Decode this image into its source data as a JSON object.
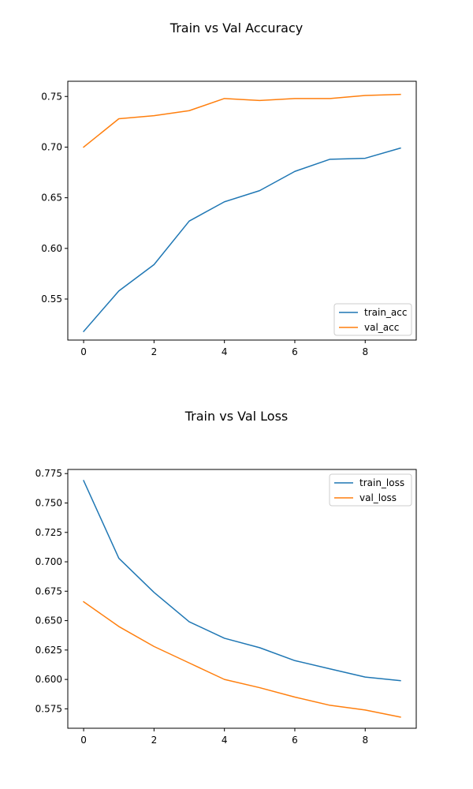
{
  "chart_data": [
    {
      "type": "line",
      "title": "Train vs Val Accuracy",
      "xlabel": "",
      "ylabel": "",
      "x": [
        0,
        1,
        2,
        3,
        4,
        5,
        6,
        7,
        8,
        9
      ],
      "xlim": [
        -0.45,
        9.45
      ],
      "ylim": [
        0.5095,
        0.765
      ],
      "xticks": [
        0,
        2,
        4,
        6,
        8
      ],
      "yticks": [
        0.55,
        0.6,
        0.65,
        0.7,
        0.75
      ],
      "ytick_labels": [
        "0.55",
        "0.60",
        "0.65",
        "0.70",
        "0.75"
      ],
      "legend_position": "lower-right",
      "grid": false,
      "series": [
        {
          "name": "train_acc",
          "color": "#1f77b4",
          "values": [
            0.518,
            0.558,
            0.584,
            0.627,
            0.646,
            0.657,
            0.676,
            0.688,
            0.689,
            0.699
          ]
        },
        {
          "name": "val_acc",
          "color": "#ff7f0e",
          "values": [
            0.7,
            0.728,
            0.731,
            0.736,
            0.748,
            0.746,
            0.748,
            0.748,
            0.751,
            0.752
          ]
        }
      ]
    },
    {
      "type": "line",
      "title": "Train vs Val Loss",
      "xlabel": "",
      "ylabel": "",
      "x": [
        0,
        1,
        2,
        3,
        4,
        5,
        6,
        7,
        8,
        9
      ],
      "xlim": [
        -0.45,
        9.45
      ],
      "ylim": [
        0.5585,
        0.7785
      ],
      "xticks": [
        0,
        2,
        4,
        6,
        8
      ],
      "yticks": [
        0.575,
        0.6,
        0.625,
        0.65,
        0.675,
        0.7,
        0.725,
        0.75,
        0.775
      ],
      "ytick_labels": [
        "0.575",
        "0.600",
        "0.625",
        "0.650",
        "0.675",
        "0.700",
        "0.725",
        "0.750",
        "0.775"
      ],
      "legend_position": "upper-right",
      "grid": false,
      "series": [
        {
          "name": "train_loss",
          "color": "#1f77b4",
          "values": [
            0.769,
            0.703,
            0.674,
            0.649,
            0.635,
            0.627,
            0.616,
            0.609,
            0.602,
            0.599
          ]
        },
        {
          "name": "val_loss",
          "color": "#ff7f0e",
          "values": [
            0.666,
            0.645,
            0.628,
            0.614,
            0.6,
            0.593,
            0.585,
            0.578,
            0.574,
            0.568
          ]
        }
      ]
    }
  ]
}
